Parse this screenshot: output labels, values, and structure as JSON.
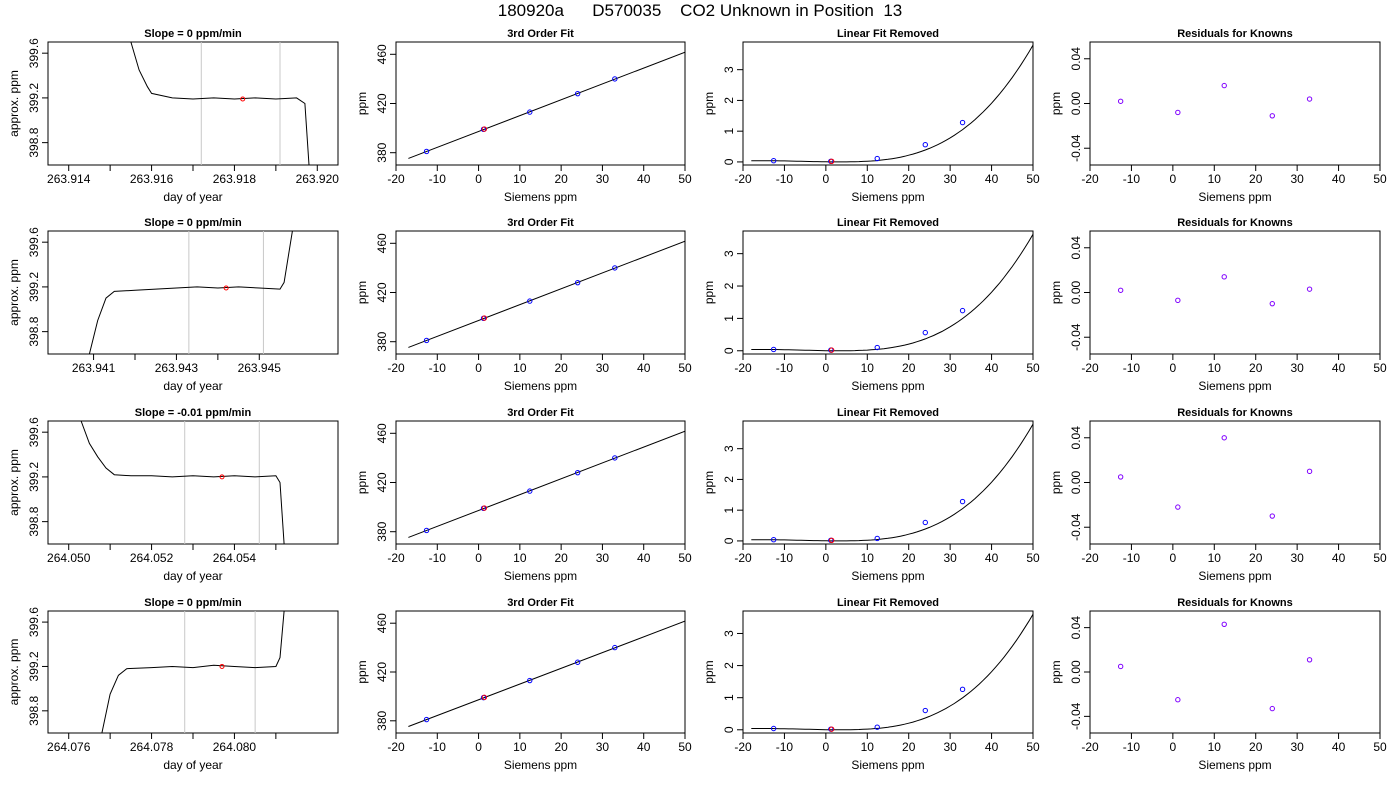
{
  "page": {
    "title": "180920a      D570035    CO2 Unknown in Position  13"
  },
  "chart_data": [
    {
      "type": "line",
      "panel": "raw-1",
      "title": "Slope =  0  ppm/min",
      "xlabel": "day of year",
      "ylabel": "approx. ppm",
      "xlim": [
        263.9135,
        263.9205
      ],
      "ylim": [
        398.6,
        399.7
      ],
      "xticks": [
        263.914,
        263.915,
        263.916,
        263.917,
        263.918,
        263.919,
        263.92
      ],
      "xtick_labels": [
        "263.914",
        "",
        "263.916",
        "",
        "263.918",
        "",
        "263.920"
      ],
      "yticks": [
        398.8,
        399.2,
        399.6
      ],
      "ytick_labels": [
        "398.8",
        "399.2",
        "399.6"
      ],
      "vlines": [
        263.9172,
        263.9191
      ],
      "marker": [
        263.9182,
        399.19
      ],
      "x": [
        263.9155,
        263.9157,
        263.9159,
        263.916,
        263.9165,
        263.917,
        263.9175,
        263.918,
        263.9185,
        263.919,
        263.9195,
        263.9197,
        263.9198
      ],
      "y": [
        399.7,
        399.45,
        399.3,
        399.24,
        399.2,
        399.19,
        399.2,
        399.19,
        399.2,
        399.19,
        399.2,
        399.15,
        398.6
      ]
    },
    {
      "type": "scatter",
      "panel": "fit-1",
      "title": "3rd Order Fit",
      "xlabel": "Siemens ppm",
      "ylabel": "ppm",
      "xlim": [
        -20,
        50
      ],
      "ylim": [
        370,
        470
      ],
      "xticks": [
        -20,
        -10,
        0,
        10,
        20,
        30,
        40,
        50
      ],
      "xtick_labels": [
        "-20",
        "-10",
        "0",
        "10",
        "20",
        "30",
        "40",
        "50"
      ],
      "yticks": [
        380,
        420,
        460
      ],
      "ytick_labels": [
        "380",
        "420",
        "460"
      ],
      "curve": "line",
      "knowns": {
        "x": [
          -12.6,
          1.2,
          12.4,
          24.0,
          33.0
        ],
        "y": [
          381.0,
          399.0,
          413.0,
          428.0,
          440.0
        ]
      },
      "unknown": [
        1.4,
        399.2
      ]
    },
    {
      "type": "scatter",
      "panel": "lin-1",
      "title": "Linear Fit Removed",
      "xlabel": "Siemens ppm",
      "ylabel": "ppm",
      "xlim": [
        -20,
        50
      ],
      "ylim": [
        -0.1,
        3.9
      ],
      "xticks": [
        -20,
        -10,
        0,
        10,
        20,
        30,
        40,
        50
      ],
      "xtick_labels": [
        "-20",
        "-10",
        "0",
        "10",
        "20",
        "30",
        "40",
        "50"
      ],
      "yticks": [
        0,
        1,
        2,
        3
      ],
      "ytick_labels": [
        "0",
        "1",
        "2",
        "3"
      ],
      "curve": "cubic",
      "curve_end": 3.8,
      "knowns": {
        "x": [
          -12.6,
          1.2,
          12.4,
          24.0,
          33.0
        ],
        "y": [
          0.04,
          0.02,
          0.11,
          0.56,
          1.28
        ]
      },
      "unknown": [
        1.4,
        0.02
      ]
    },
    {
      "type": "scatter",
      "panel": "res-1",
      "title": "Residuals for Knowns",
      "xlabel": "Siemens ppm",
      "ylabel": "ppm",
      "xlim": [
        -20,
        50
      ],
      "ylim": [
        -0.055,
        0.055
      ],
      "xticks": [
        -20,
        -10,
        0,
        10,
        20,
        30,
        40,
        50
      ],
      "xtick_labels": [
        "-20",
        "-10",
        "0",
        "10",
        "20",
        "30",
        "40",
        "50"
      ],
      "yticks": [
        -0.04,
        0,
        0.04
      ],
      "ytick_labels": [
        "-0.04",
        "0.00",
        "0.04"
      ],
      "knowns": {
        "x": [
          -12.6,
          1.2,
          12.4,
          24.0,
          33.0
        ],
        "y": [
          0.002,
          -0.008,
          0.016,
          -0.011,
          0.004
        ]
      }
    },
    {
      "type": "line",
      "panel": "raw-2",
      "title": "Slope =  0  ppm/min",
      "xlabel": "day of year",
      "ylabel": "approx. ppm",
      "xlim": [
        263.9399,
        263.9469
      ],
      "ylim": [
        398.6,
        399.7
      ],
      "xticks": [
        263.941,
        263.942,
        263.943,
        263.944,
        263.945
      ],
      "xtick_labels": [
        "263.941",
        "",
        "263.943",
        "",
        "263.945"
      ],
      "yticks": [
        398.8,
        399.2,
        399.6
      ],
      "ytick_labels": [
        "398.8",
        "399.2",
        "399.6"
      ],
      "vlines": [
        263.9433,
        263.9451
      ],
      "marker": [
        263.9442,
        399.19
      ],
      "x": [
        263.9409,
        263.9411,
        263.9413,
        263.9415,
        263.942,
        263.9425,
        263.943,
        263.9435,
        263.944,
        263.9445,
        263.945,
        263.9455,
        263.9456,
        263.9458
      ],
      "y": [
        398.6,
        398.9,
        399.1,
        399.16,
        399.17,
        399.18,
        399.19,
        399.2,
        399.19,
        399.2,
        399.19,
        399.18,
        399.24,
        399.7
      ]
    },
    {
      "type": "scatter",
      "panel": "fit-2",
      "title": "3rd Order Fit",
      "xlabel": "Siemens ppm",
      "ylabel": "ppm",
      "xlim": [
        -20,
        50
      ],
      "ylim": [
        370,
        470
      ],
      "xticks": [
        -20,
        -10,
        0,
        10,
        20,
        30,
        40,
        50
      ],
      "xtick_labels": [
        "-20",
        "-10",
        "0",
        "10",
        "20",
        "30",
        "40",
        "50"
      ],
      "yticks": [
        380,
        420,
        460
      ],
      "ytick_labels": [
        "380",
        "420",
        "460"
      ],
      "curve": "line",
      "knowns": {
        "x": [
          -12.6,
          1.2,
          12.4,
          24.0,
          33.0
        ],
        "y": [
          381.0,
          399.0,
          413.0,
          428.0,
          440.0
        ]
      },
      "unknown": [
        1.4,
        399.2
      ]
    },
    {
      "type": "scatter",
      "panel": "lin-2",
      "title": "Linear Fit Removed",
      "xlabel": "Siemens ppm",
      "ylabel": "ppm",
      "xlim": [
        -20,
        50
      ],
      "ylim": [
        -0.1,
        3.7
      ],
      "xticks": [
        -20,
        -10,
        0,
        10,
        20,
        30,
        40,
        50
      ],
      "xtick_labels": [
        "-20",
        "-10",
        "0",
        "10",
        "20",
        "30",
        "40",
        "50"
      ],
      "yticks": [
        0,
        1,
        2,
        3
      ],
      "ytick_labels": [
        "0",
        "1",
        "2",
        "3"
      ],
      "curve": "cubic",
      "curve_end": 3.6,
      "knowns": {
        "x": [
          -12.6,
          1.2,
          12.4,
          24.0,
          33.0
        ],
        "y": [
          0.04,
          0.02,
          0.1,
          0.56,
          1.24
        ]
      },
      "unknown": [
        1.4,
        0.02
      ]
    },
    {
      "type": "scatter",
      "panel": "res-2",
      "title": "Residuals for Knowns",
      "xlabel": "Siemens ppm",
      "ylabel": "ppm",
      "xlim": [
        -20,
        50
      ],
      "ylim": [
        -0.055,
        0.055
      ],
      "xticks": [
        -20,
        -10,
        0,
        10,
        20,
        30,
        40,
        50
      ],
      "xtick_labels": [
        "-20",
        "-10",
        "0",
        "10",
        "20",
        "30",
        "40",
        "50"
      ],
      "yticks": [
        -0.04,
        0,
        0.04
      ],
      "ytick_labels": [
        "-0.04",
        "0.00",
        "0.04"
      ],
      "knowns": {
        "x": [
          -12.6,
          1.2,
          12.4,
          24.0,
          33.0
        ],
        "y": [
          0.002,
          -0.007,
          0.014,
          -0.01,
          0.003
        ]
      }
    },
    {
      "type": "line",
      "panel": "raw-3",
      "title": "Slope =  -0.01  ppm/min",
      "xlabel": "day of year",
      "ylabel": "approx. ppm",
      "xlim": [
        264.0495,
        264.0565
      ],
      "ylim": [
        398.6,
        399.7
      ],
      "xticks": [
        264.05,
        264.051,
        264.052,
        264.053,
        264.054,
        264.055
      ],
      "xtick_labels": [
        "264.050",
        "",
        "264.052",
        "",
        "264.054",
        ""
      ],
      "yticks": [
        398.8,
        399.2,
        399.6
      ],
      "ytick_labels": [
        "398.8",
        "399.2",
        "399.6"
      ],
      "vlines": [
        264.0528,
        264.0546
      ],
      "marker": [
        264.0537,
        399.2
      ],
      "x": [
        264.0503,
        264.0505,
        264.0507,
        264.0509,
        264.0511,
        264.0515,
        264.052,
        264.0525,
        264.053,
        264.0535,
        264.054,
        264.0545,
        264.055,
        264.0551,
        264.0552
      ],
      "y": [
        399.7,
        399.5,
        399.38,
        399.28,
        399.22,
        399.21,
        399.21,
        399.2,
        399.21,
        399.2,
        399.21,
        399.2,
        399.21,
        399.15,
        398.6
      ]
    },
    {
      "type": "scatter",
      "panel": "fit-3",
      "title": "3rd Order Fit",
      "xlabel": "Siemens ppm",
      "ylabel": "ppm",
      "xlim": [
        -20,
        50
      ],
      "ylim": [
        370,
        470
      ],
      "xticks": [
        -20,
        -10,
        0,
        10,
        20,
        30,
        40,
        50
      ],
      "xtick_labels": [
        "-20",
        "-10",
        "0",
        "10",
        "20",
        "30",
        "40",
        "50"
      ],
      "yticks": [
        380,
        420,
        460
      ],
      "ytick_labels": [
        "380",
        "420",
        "460"
      ],
      "curve": "line",
      "knowns": {
        "x": [
          -12.6,
          1.2,
          12.4,
          24.0,
          33.0
        ],
        "y": [
          381.0,
          399.0,
          413.0,
          428.0,
          440.0
        ]
      },
      "unknown": [
        1.4,
        399.2
      ]
    },
    {
      "type": "scatter",
      "panel": "lin-3",
      "title": "Linear Fit Removed",
      "xlabel": "Siemens ppm",
      "ylabel": "ppm",
      "xlim": [
        -20,
        50
      ],
      "ylim": [
        -0.1,
        3.9
      ],
      "xticks": [
        -20,
        -10,
        0,
        10,
        20,
        30,
        40,
        50
      ],
      "xtick_labels": [
        "-20",
        "-10",
        "0",
        "10",
        "20",
        "30",
        "40",
        "50"
      ],
      "yticks": [
        0,
        1,
        2,
        3
      ],
      "ytick_labels": [
        "0",
        "1",
        "2",
        "3"
      ],
      "curve": "cubic",
      "curve_end": 3.8,
      "knowns": {
        "x": [
          -12.6,
          1.2,
          12.4,
          24.0,
          33.0
        ],
        "y": [
          0.04,
          0.02,
          0.08,
          0.6,
          1.28
        ]
      },
      "unknown": [
        1.4,
        0.02
      ]
    },
    {
      "type": "scatter",
      "panel": "res-3",
      "title": "Residuals for Knowns",
      "xlabel": "Siemens ppm",
      "ylabel": "ppm",
      "xlim": [
        -20,
        50
      ],
      "ylim": [
        -0.055,
        0.055
      ],
      "xticks": [
        -20,
        -10,
        0,
        10,
        20,
        30,
        40,
        50
      ],
      "xtick_labels": [
        "-20",
        "-10",
        "0",
        "10",
        "20",
        "30",
        "40",
        "50"
      ],
      "yticks": [
        -0.04,
        0,
        0.04
      ],
      "ytick_labels": [
        "-0.04",
        "0.00",
        "0.04"
      ],
      "knowns": {
        "x": [
          -12.6,
          1.2,
          12.4,
          24.0,
          33.0
        ],
        "y": [
          0.005,
          -0.022,
          0.04,
          -0.03,
          0.01
        ]
      }
    },
    {
      "type": "line",
      "panel": "raw-4",
      "title": "Slope =  0  ppm/min",
      "xlabel": "day of year",
      "ylabel": "approx. ppm",
      "xlim": [
        264.0755,
        264.0825
      ],
      "ylim": [
        398.6,
        399.7
      ],
      "xticks": [
        264.076,
        264.077,
        264.078,
        264.079,
        264.08,
        264.081
      ],
      "xtick_labels": [
        "264.076",
        "",
        "264.078",
        "",
        "264.080",
        ""
      ],
      "yticks": [
        398.8,
        399.2,
        399.6
      ],
      "ytick_labels": [
        "398.8",
        "399.2",
        "399.6"
      ],
      "vlines": [
        264.0788,
        264.0805
      ],
      "marker": [
        264.0797,
        399.2
      ],
      "x": [
        264.0768,
        264.077,
        264.0772,
        264.0774,
        264.078,
        264.0785,
        264.079,
        264.0795,
        264.08,
        264.0805,
        264.081,
        264.0811,
        264.0812
      ],
      "y": [
        398.6,
        398.95,
        399.12,
        399.18,
        399.19,
        399.2,
        399.19,
        399.21,
        399.2,
        399.19,
        399.2,
        399.28,
        399.7
      ]
    },
    {
      "type": "scatter",
      "panel": "fit-4",
      "title": "3rd Order Fit",
      "xlabel": "Siemens ppm",
      "ylabel": "ppm",
      "xlim": [
        -20,
        50
      ],
      "ylim": [
        370,
        470
      ],
      "xticks": [
        -20,
        -10,
        0,
        10,
        20,
        30,
        40,
        50
      ],
      "xtick_labels": [
        "-20",
        "-10",
        "0",
        "10",
        "20",
        "30",
        "40",
        "50"
      ],
      "yticks": [
        380,
        420,
        460
      ],
      "ytick_labels": [
        "380",
        "420",
        "460"
      ],
      "curve": "line",
      "knowns": {
        "x": [
          -12.6,
          1.2,
          12.4,
          24.0,
          33.0
        ],
        "y": [
          381.0,
          399.0,
          413.0,
          428.0,
          440.0
        ]
      },
      "unknown": [
        1.4,
        399.2
      ]
    },
    {
      "type": "scatter",
      "panel": "lin-4",
      "title": "Linear Fit Removed",
      "xlabel": "Siemens ppm",
      "ylabel": "ppm",
      "xlim": [
        -20,
        50
      ],
      "ylim": [
        -0.1,
        3.7
      ],
      "xticks": [
        -20,
        -10,
        0,
        10,
        20,
        30,
        40,
        50
      ],
      "xtick_labels": [
        "-20",
        "-10",
        "0",
        "10",
        "20",
        "30",
        "40",
        "50"
      ],
      "yticks": [
        0,
        1,
        2,
        3
      ],
      "ytick_labels": [
        "0",
        "1",
        "2",
        "3"
      ],
      "curve": "cubic",
      "curve_end": 3.6,
      "knowns": {
        "x": [
          -12.6,
          1.2,
          12.4,
          24.0,
          33.0
        ],
        "y": [
          0.04,
          0.02,
          0.08,
          0.6,
          1.26
        ]
      },
      "unknown": [
        1.4,
        0.02
      ]
    },
    {
      "type": "scatter",
      "panel": "res-4",
      "title": "Residuals for Knowns",
      "xlabel": "Siemens ppm",
      "ylabel": "ppm",
      "xlim": [
        -20,
        50
      ],
      "ylim": [
        -0.055,
        0.055
      ],
      "xticks": [
        -20,
        -10,
        0,
        10,
        20,
        30,
        40,
        50
      ],
      "xtick_labels": [
        "-20",
        "-10",
        "0",
        "10",
        "20",
        "30",
        "40",
        "50"
      ],
      "yticks": [
        -0.04,
        0,
        0.04
      ],
      "ytick_labels": [
        "-0.04",
        "0.00",
        "0.04"
      ],
      "knowns": {
        "x": [
          -12.6,
          1.2,
          12.4,
          24.0,
          33.0
        ],
        "y": [
          0.005,
          -0.025,
          0.043,
          -0.033,
          0.011
        ]
      }
    }
  ],
  "colors": {
    "axis": "#000000",
    "curve": "#000000",
    "vline": "#c8c8c8",
    "known_marker": "#0000ff",
    "unknown_marker": "#ff0000",
    "residual_marker": "#8000ff"
  }
}
